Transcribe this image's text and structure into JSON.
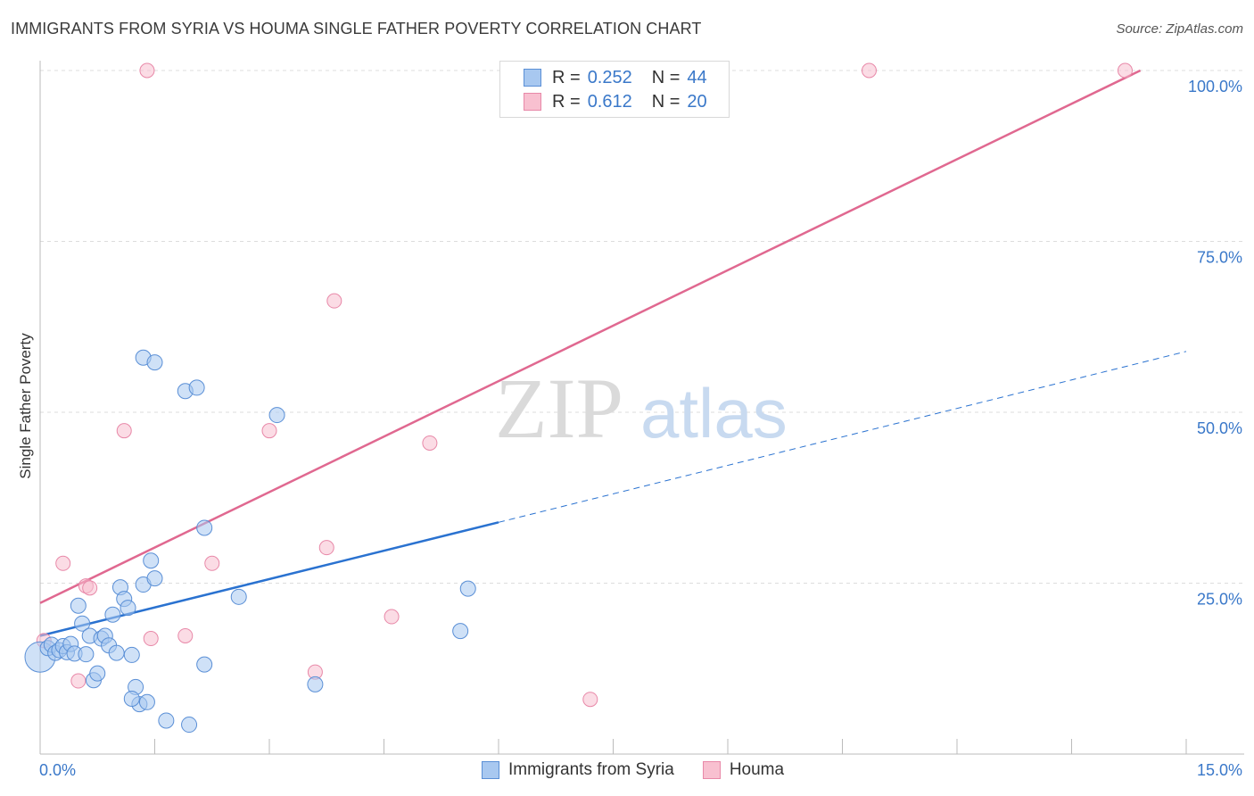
{
  "header": {
    "title": "IMMIGRANTS FROM SYRIA VS HOUMA SINGLE FATHER POVERTY CORRELATION CHART",
    "source": "Source: ZipAtlas.com"
  },
  "legend": {
    "rows": [
      {
        "r_label": "R =",
        "r_value": "0.252",
        "n_label": "N =",
        "n_value": "44"
      },
      {
        "r_label": "R =",
        "r_value": "0.612",
        "n_label": "N =",
        "n_value": "20"
      }
    ]
  },
  "bottom_legend": {
    "items": [
      {
        "label": "Immigrants from Syria"
      },
      {
        "label": "Houma"
      }
    ]
  },
  "watermark": {
    "zip": "ZIP",
    "atlas": "atlas"
  },
  "colors": {
    "blue_fill": "#a8c8f0",
    "blue_stroke": "#5a8fd6",
    "blue_line": "#2a72d0",
    "pink_fill": "#f8c0d0",
    "pink_stroke": "#e888a8",
    "pink_line": "#e06890",
    "axis_text": "#3a78c9",
    "grid": "#dddddd"
  },
  "chart_data": {
    "type": "scatter",
    "title": "IMMIGRANTS FROM SYRIA VS HOUMA SINGLE FATHER POVERTY CORRELATION CHART",
    "xlabel": "",
    "ylabel": "Single Father Poverty",
    "xlim": [
      0,
      15
    ],
    "ylim": [
      0,
      100
    ],
    "x_ticks": [
      "0.0%",
      "15.0%"
    ],
    "y_ticks": [
      "25.0%",
      "50.0%",
      "75.0%",
      "100.0%"
    ],
    "grid": true,
    "legend_position": "top-center",
    "series": [
      {
        "name": "Immigrants from Syria",
        "r": 0.252,
        "n": 44,
        "trend": {
          "x0": 0,
          "y0": 17.3,
          "x1": 6.0,
          "y1": 33.9,
          "dashed_to_x": 15.0,
          "dashed_to_y": 58.9
        },
        "points": [
          [
            0.0,
            14.2
          ],
          [
            0.1,
            15.5
          ],
          [
            0.15,
            16.0
          ],
          [
            0.2,
            14.8
          ],
          [
            0.25,
            15.2
          ],
          [
            0.3,
            15.8
          ],
          [
            0.35,
            14.9
          ],
          [
            0.4,
            16.1
          ],
          [
            0.45,
            14.7
          ],
          [
            0.5,
            21.7
          ],
          [
            0.55,
            19.1
          ],
          [
            0.6,
            14.6
          ],
          [
            0.65,
            17.3
          ],
          [
            0.7,
            10.8
          ],
          [
            0.75,
            11.8
          ],
          [
            0.8,
            16.9
          ],
          [
            0.85,
            17.3
          ],
          [
            0.9,
            15.9
          ],
          [
            0.95,
            20.4
          ],
          [
            1.0,
            14.8
          ],
          [
            1.05,
            24.4
          ],
          [
            1.1,
            22.7
          ],
          [
            1.15,
            21.4
          ],
          [
            1.2,
            14.5
          ],
          [
            1.25,
            9.8
          ],
          [
            1.3,
            7.3
          ],
          [
            1.35,
            24.8
          ],
          [
            1.4,
            7.6
          ],
          [
            1.45,
            28.3
          ],
          [
            1.5,
            25.7
          ],
          [
            1.35,
            58.0
          ],
          [
            1.5,
            57.3
          ],
          [
            1.9,
            53.1
          ],
          [
            2.05,
            53.6
          ],
          [
            2.15,
            33.1
          ],
          [
            2.15,
            13.1
          ],
          [
            2.6,
            23.0
          ],
          [
            3.1,
            49.6
          ],
          [
            3.6,
            10.2
          ],
          [
            5.5,
            18.0
          ],
          [
            5.6,
            24.2
          ],
          [
            1.2,
            8.1
          ],
          [
            1.65,
            4.9
          ],
          [
            1.95,
            4.3
          ]
        ]
      },
      {
        "name": "Houma",
        "r": 0.612,
        "n": 20,
        "trend": {
          "x0": 0,
          "y0": 22.1,
          "x1": 14.4,
          "y1": 100
        },
        "points": [
          [
            0.05,
            16.6
          ],
          [
            0.3,
            27.9
          ],
          [
            0.5,
            10.7
          ],
          [
            0.6,
            24.6
          ],
          [
            0.65,
            24.3
          ],
          [
            1.1,
            47.3
          ],
          [
            1.4,
            100
          ],
          [
            1.45,
            16.9
          ],
          [
            1.9,
            17.3
          ],
          [
            2.25,
            27.9
          ],
          [
            3.0,
            47.3
          ],
          [
            3.85,
            66.3
          ],
          [
            3.75,
            30.2
          ],
          [
            3.6,
            12.0
          ],
          [
            4.6,
            20.1
          ],
          [
            5.1,
            45.5
          ],
          [
            7.2,
            8.0
          ],
          [
            7.55,
            100
          ],
          [
            10.85,
            100
          ],
          [
            14.2,
            100
          ]
        ]
      }
    ]
  }
}
